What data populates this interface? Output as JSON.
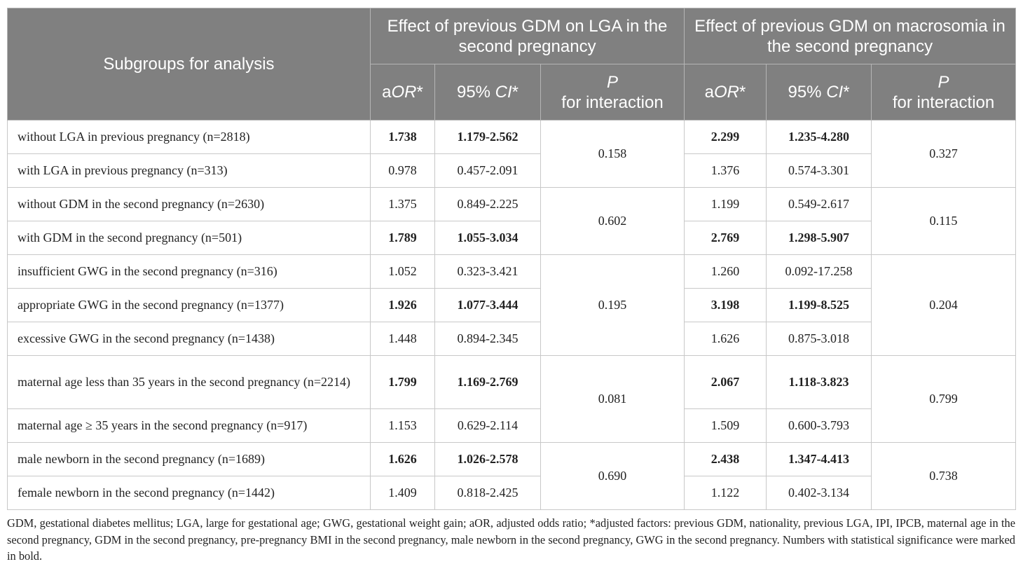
{
  "header": {
    "subgroup_label": "Subgroups for analysis",
    "group_lga": "Effect of previous GDM on LGA in the second pregnancy",
    "group_macro": "Effect of previous GDM on macrosomia in the second pregnancy",
    "aor_prefix": "a",
    "aor_italic": "OR",
    "aor_suffix": "*",
    "ci_prefix": "95% ",
    "ci_italic": "CI",
    "ci_suffix": "*",
    "p_italic": "P",
    "p_suffix": "for interaction"
  },
  "rows": [
    {
      "label": "without LGA in previous pregnancy (n=2818)",
      "lga_aor": "1.738",
      "lga_ci": "1.179-2.562",
      "lga_sig": true,
      "mac_aor": "2.299",
      "mac_ci": "1.235-4.280",
      "mac_sig": true
    },
    {
      "label": "with LGA in previous pregnancy (n=313)",
      "lga_aor": "0.978",
      "lga_ci": "0.457-2.091",
      "lga_sig": false,
      "mac_aor": "1.376",
      "mac_ci": "0.574-3.301",
      "mac_sig": false
    },
    {
      "label": "without GDM in the second pregnancy (n=2630)",
      "lga_aor": "1.375",
      "lga_ci": "0.849-2.225",
      "lga_sig": false,
      "mac_aor": "1.199",
      "mac_ci": "0.549-2.617",
      "mac_sig": false
    },
    {
      "label": "with GDM in the second pregnancy (n=501)",
      "lga_aor": "1.789",
      "lga_ci": "1.055-3.034",
      "lga_sig": true,
      "mac_aor": "2.769",
      "mac_ci": "1.298-5.907",
      "mac_sig": true
    },
    {
      "label": "insufficient GWG in the second pregnancy (n=316)",
      "lga_aor": "1.052",
      "lga_ci": "0.323-3.421",
      "lga_sig": false,
      "mac_aor": "1.260",
      "mac_ci": "0.092-17.258",
      "mac_sig": false
    },
    {
      "label": "appropriate GWG in the second pregnancy (n=1377)",
      "lga_aor": "1.926",
      "lga_ci": "1.077-3.444",
      "lga_sig": true,
      "mac_aor": "3.198",
      "mac_ci": "1.199-8.525",
      "mac_sig": true
    },
    {
      "label": "excessive GWG in the second pregnancy (n=1438)",
      "lga_aor": "1.448",
      "lga_ci": "0.894-2.345",
      "lga_sig": false,
      "mac_aor": "1.626",
      "mac_ci": "0.875-3.018",
      "mac_sig": false
    },
    {
      "label": "maternal age less than 35 years in the second pregnancy (n=2214)",
      "lga_aor": "1.799",
      "lga_ci": "1.169-2.769",
      "lga_sig": true,
      "mac_aor": "2.067",
      "mac_ci": "1.118-3.823",
      "mac_sig": true
    },
    {
      "label": "maternal age ≥ 35 years in the second pregnancy (n=917)",
      "lga_aor": "1.153",
      "lga_ci": "0.629-2.114",
      "lga_sig": false,
      "mac_aor": "1.509",
      "mac_ci": "0.600-3.793",
      "mac_sig": false
    },
    {
      "label": "male newborn in the second pregnancy (n=1689)",
      "lga_aor": "1.626",
      "lga_ci": "1.026-2.578",
      "lga_sig": true,
      "mac_aor": "2.438",
      "mac_ci": "1.347-4.413",
      "mac_sig": true
    },
    {
      "label": "female newborn in the second pregnancy (n=1442)",
      "lga_aor": "1.409",
      "lga_ci": "0.818-2.425",
      "lga_sig": false,
      "mac_aor": "1.122",
      "mac_ci": "0.402-3.134",
      "mac_sig": false
    }
  ],
  "interaction_p": {
    "lga": [
      "0.158",
      "0.602",
      "0.195",
      "0.081",
      "0.690"
    ],
    "macro": [
      "0.327",
      "0.115",
      "0.204",
      "0.799",
      "0.738"
    ]
  },
  "footnote": "GDM, gestational diabetes mellitus; LGA, large for gestational age; GWG, gestational weight gain; aOR, adjusted odds ratio; *adjusted factors: previous GDM, nationality, previous LGA, IPI, IPCB, maternal age in the second pregnancy, GDM in the second pregnancy, pre-pregnancy BMI in the second pregnancy, male newborn in the second pregnancy, GWG in the second pregnancy. Numbers with statistical significance were marked in bold."
}
